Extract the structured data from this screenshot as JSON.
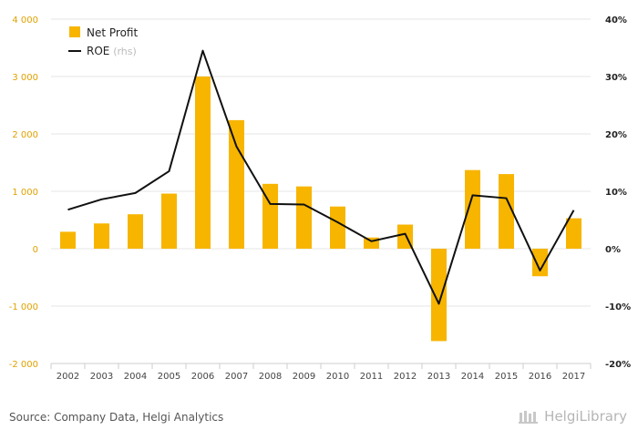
{
  "chart_data": {
    "type": "bar",
    "categories": [
      "2002",
      "2003",
      "2004",
      "2005",
      "2006",
      "2007",
      "2008",
      "2009",
      "2010",
      "2011",
      "2012",
      "2013",
      "2014",
      "2015",
      "2016",
      "2017"
    ],
    "series": [
      {
        "name": "Net Profit",
        "type": "bar",
        "axis": "left",
        "color": "#f7b500",
        "values": [
          295,
          440,
          600,
          960,
          3000,
          2240,
          1130,
          1085,
          735,
          195,
          420,
          -1610,
          1370,
          1300,
          -480,
          530
        ]
      },
      {
        "name": "ROE",
        "name_suffix": "(rhs)",
        "type": "line",
        "axis": "right",
        "color": "#111111",
        "values": [
          6.8,
          8.6,
          9.7,
          13.5,
          34.5,
          17.8,
          7.8,
          7.7,
          4.6,
          1.3,
          2.6,
          -9.6,
          9.3,
          8.8,
          -3.8,
          6.7
        ]
      }
    ],
    "y_left": {
      "min": -2000,
      "max": 4000,
      "step": 1000,
      "ticks": [
        "-2 000",
        "-1 000",
        "0",
        "1 000",
        "2 000",
        "3 000",
        "4 000"
      ]
    },
    "y_right": {
      "min": -20,
      "max": 40,
      "step": 10,
      "ticks": [
        "-20%",
        "-10%",
        "0%",
        "10%",
        "20%",
        "30%",
        "40%"
      ]
    },
    "grid": true,
    "legend_position": "top-left"
  },
  "footer": {
    "source": "Source: Company Data, Helgi Analytics",
    "brand": "HelgiLibrary"
  }
}
